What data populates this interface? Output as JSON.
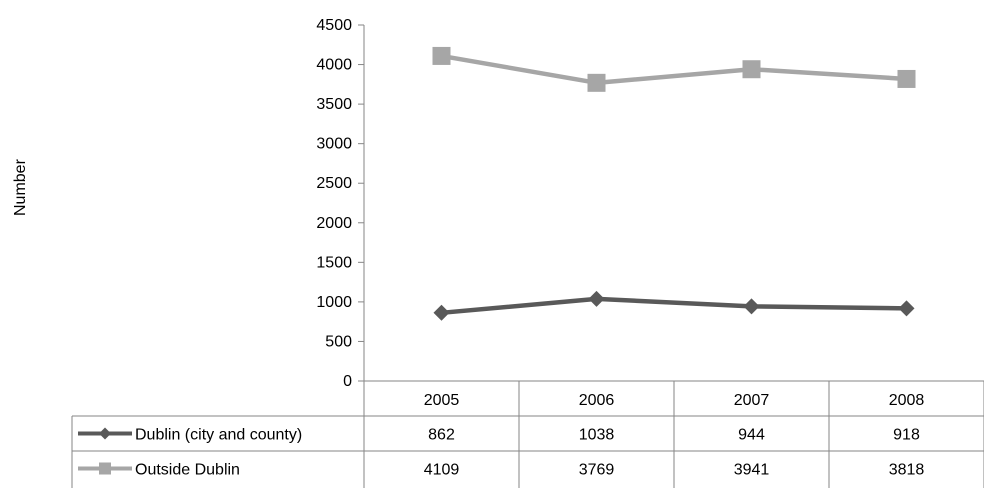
{
  "chart_data": {
    "type": "line",
    "title": "",
    "xlabel": "",
    "ylabel": "Number",
    "categories": [
      "2005",
      "2006",
      "2007",
      "2008"
    ],
    "ylim": [
      0,
      4500
    ],
    "yticks": [
      0,
      500,
      1000,
      1500,
      2000,
      2500,
      3000,
      3500,
      4000,
      4500
    ],
    "grid": false,
    "legend": "data-table",
    "series": [
      {
        "name": "Dublin (city and county)",
        "values": [
          862,
          1038,
          944,
          918
        ],
        "color": "#595959",
        "marker": "diamond"
      },
      {
        "name": "Outside Dublin",
        "values": [
          4109,
          3769,
          3941,
          3818
        ],
        "color": "#a6a6a6",
        "marker": "square"
      }
    ]
  }
}
